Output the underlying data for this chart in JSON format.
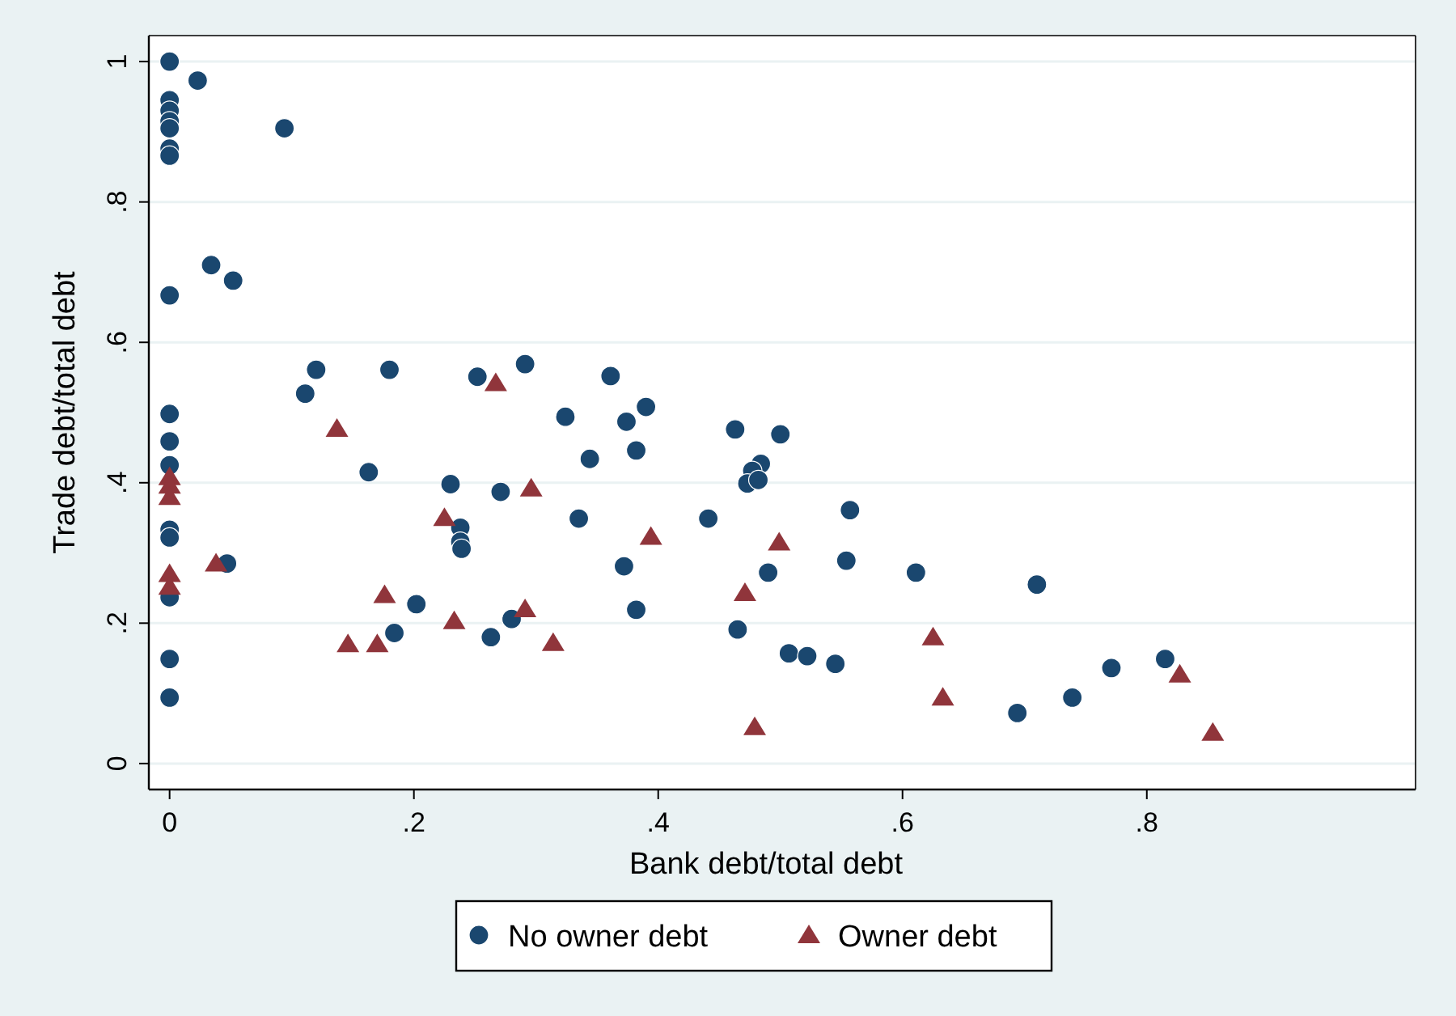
{
  "chart_data": {
    "type": "scatter",
    "xlabel": "Bank debt/total debt",
    "ylabel": "Trade debt/total debt",
    "xlim": [
      -0.017,
      1.02
    ],
    "ylim": [
      -0.037,
      1.037
    ],
    "xticks": [
      0,
      {
        "value": 0.2,
        "label": ".2"
      },
      {
        "value": 0.4,
        "label": ".4"
      },
      {
        "value": 0.6,
        "label": ".6"
      },
      {
        "value": 0.8,
        "label": ".8"
      }
    ],
    "yticks": [
      0,
      {
        "value": 0.2,
        "label": ".2"
      },
      {
        "value": 0.4,
        "label": ".4"
      },
      {
        "value": 0.6,
        "label": ".6"
      },
      {
        "value": 0.8,
        "label": ".8"
      },
      1
    ],
    "grid": "y",
    "legend": "bottom",
    "series": [
      {
        "name": "No owner debt",
        "color": "#1a476f",
        "marker": "circle",
        "x": [
          0,
          0.023,
          0,
          0,
          0,
          0,
          0,
          0,
          0.094,
          0.034,
          0.052,
          0,
          0.12,
          0.111,
          0.18,
          0.252,
          0.291,
          0,
          0,
          0,
          0.324,
          0.163,
          0.23,
          0.271,
          0.238,
          0.238,
          0.239,
          0,
          0,
          0.047,
          0,
          0.202,
          0.28,
          0.184,
          0.263,
          0,
          0,
          0.361,
          0.39,
          0.374,
          0.344,
          0.382,
          0.463,
          0.5,
          0.484,
          0.477,
          0.473,
          0.482,
          0.335,
          0.441,
          0.557,
          0.372,
          0.49,
          0.554,
          0.611,
          0.382,
          0.465,
          0.507,
          0.522,
          0.545,
          0.71,
          0.771,
          0.815,
          0.739,
          0.694
        ],
        "values": [
          1.0,
          0.973,
          0.945,
          0.93,
          0.915,
          0.905,
          0.876,
          0.866,
          0.905,
          0.71,
          0.688,
          0.667,
          0.561,
          0.527,
          0.561,
          0.551,
          0.569,
          0.498,
          0.459,
          0.425,
          0.494,
          0.415,
          0.398,
          0.387,
          0.336,
          0.316,
          0.306,
          0.333,
          0.322,
          0.285,
          0.237,
          0.227,
          0.206,
          0.186,
          0.18,
          0.149,
          0.094,
          0.552,
          0.508,
          0.487,
          0.434,
          0.446,
          0.476,
          0.469,
          0.427,
          0.417,
          0.399,
          0.404,
          0.349,
          0.349,
          0.361,
          0.281,
          0.272,
          0.289,
          0.272,
          0.219,
          0.191,
          0.157,
          0.153,
          0.142,
          0.255,
          0.136,
          0.149,
          0.094,
          0.072
        ]
      },
      {
        "name": "Owner debt",
        "color": "#90353b",
        "marker": "triangle",
        "x": [
          0.267,
          0,
          0,
          0,
          0,
          0,
          0.137,
          0.296,
          0.225,
          0.038,
          0.176,
          0.233,
          0.291,
          0.146,
          0.17,
          0.314,
          0.394,
          0.499,
          0.471,
          0.625,
          0.633,
          0.479,
          0.827,
          0.854
        ],
        "values": [
          0.542,
          0.408,
          0.396,
          0.38,
          0.27,
          0.252,
          0.477,
          0.392,
          0.35,
          0.285,
          0.24,
          0.203,
          0.22,
          0.17,
          0.17,
          0.172,
          0.323,
          0.315,
          0.243,
          0.18,
          0.094,
          0.052,
          0.127,
          0.044
        ]
      }
    ]
  }
}
